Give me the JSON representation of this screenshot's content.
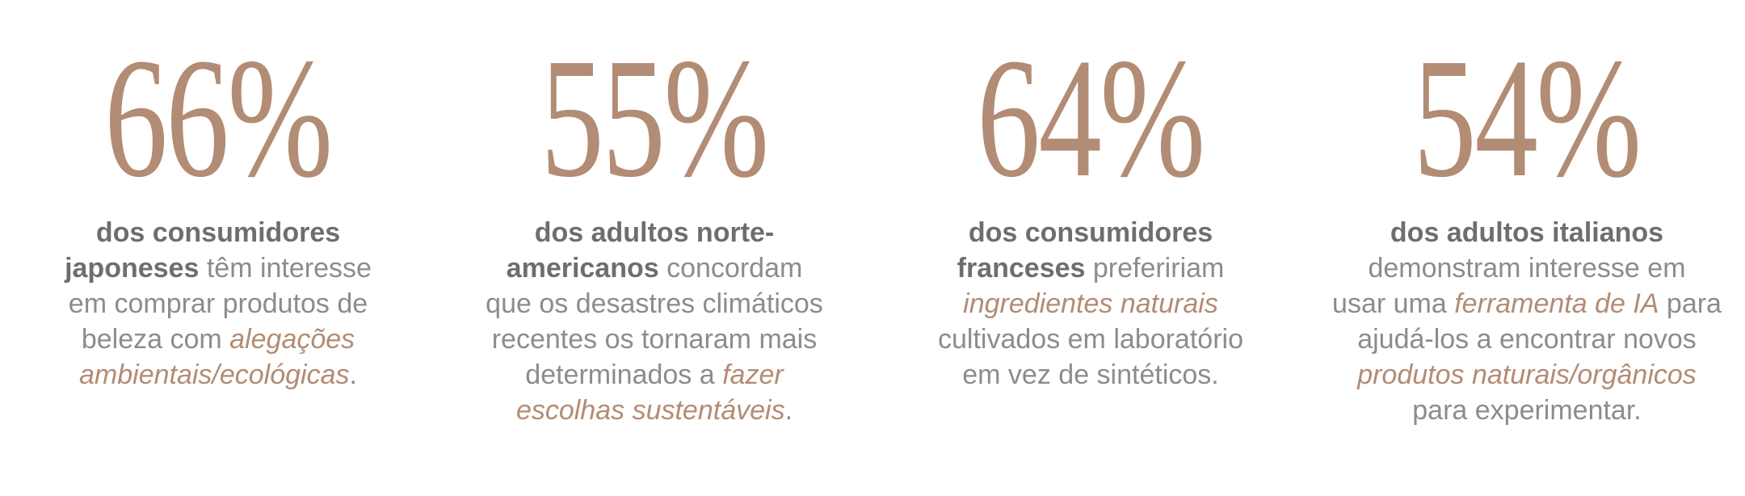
{
  "colors": {
    "accent": "#b28c74",
    "body_text": "#8c8c8c",
    "bold_text": "#6e6e6e",
    "background": "#ffffff"
  },
  "stats": [
    {
      "value": "66%",
      "lines": [
        [
          {
            "t": "dos consumidores",
            "s": "b"
          }
        ],
        [
          {
            "t": "japoneses",
            "s": "b"
          },
          {
            "t": " têm interesse",
            "s": "r"
          }
        ],
        [
          {
            "t": "em comprar produtos de",
            "s": "r"
          }
        ],
        [
          {
            "t": "beleza com ",
            "s": "r"
          },
          {
            "t": "alegações",
            "s": "i"
          }
        ],
        [
          {
            "t": "ambientais/ecológicas",
            "s": "i"
          },
          {
            "t": ".",
            "s": "r"
          }
        ]
      ]
    },
    {
      "value": "55%",
      "lines": [
        [
          {
            "t": "dos adultos norte-",
            "s": "b"
          }
        ],
        [
          {
            "t": "americanos",
            "s": "b"
          },
          {
            "t": " concordam",
            "s": "r"
          }
        ],
        [
          {
            "t": "que os desastres climáticos",
            "s": "r"
          }
        ],
        [
          {
            "t": "recentes os tornaram mais",
            "s": "r"
          }
        ],
        [
          {
            "t": "determinados a ",
            "s": "r"
          },
          {
            "t": "fazer",
            "s": "i"
          }
        ],
        [
          {
            "t": "escolhas sustentáveis",
            "s": "i"
          },
          {
            "t": ".",
            "s": "r"
          }
        ]
      ]
    },
    {
      "value": "64%",
      "lines": [
        [
          {
            "t": "dos consumidores",
            "s": "b"
          }
        ],
        [
          {
            "t": "franceses",
            "s": "b"
          },
          {
            "t": " prefeririam",
            "s": "r"
          }
        ],
        [
          {
            "t": "ingredientes naturais",
            "s": "i"
          }
        ],
        [
          {
            "t": "cultivados em laboratório",
            "s": "r"
          }
        ],
        [
          {
            "t": "em vez de sintéticos.",
            "s": "r"
          }
        ]
      ]
    },
    {
      "value": "54%",
      "lines": [
        [
          {
            "t": "dos adultos italianos",
            "s": "b"
          }
        ],
        [
          {
            "t": "demonstram interesse em",
            "s": "r"
          }
        ],
        [
          {
            "t": "usar uma ",
            "s": "r"
          },
          {
            "t": "ferramenta de IA",
            "s": "i"
          },
          {
            "t": " para",
            "s": "r"
          }
        ],
        [
          {
            "t": "ajudá-los a encontrar novos",
            "s": "r"
          }
        ],
        [
          {
            "t": "produtos naturais/orgânicos",
            "s": "i"
          }
        ],
        [
          {
            "t": "para experimentar.",
            "s": "r"
          }
        ]
      ]
    }
  ]
}
